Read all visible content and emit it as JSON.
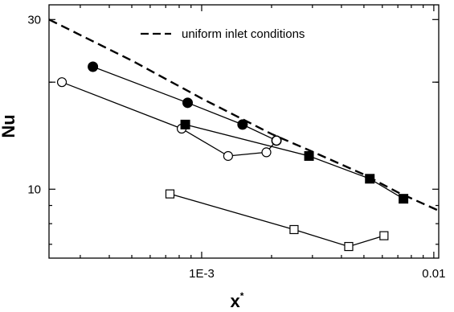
{
  "chart_data": {
    "type": "line",
    "xlabel": "x",
    "xlabel_superscript": "*",
    "ylabel": "Nu",
    "x_scale": "log",
    "y_scale": "log",
    "xlim": [
      0.00022,
      0.0105
    ],
    "ylim": [
      6.4,
      33
    ],
    "x_tick_labels": [
      {
        "value": 0.001,
        "label": "1E-3"
      },
      {
        "value": 0.01,
        "label": "0.01"
      }
    ],
    "y_tick_labels": [
      {
        "value": 10,
        "label": "10"
      },
      {
        "value": 30,
        "label": "30"
      }
    ],
    "grid": false,
    "legend_position": "top-center",
    "series": [
      {
        "name": "uniform inlet conditions",
        "style": "dashed",
        "marker": "none",
        "x": [
          0.00022,
          0.0005,
          0.001,
          0.002,
          0.003,
          0.005,
          0.007,
          0.0105
        ],
        "y": [
          30.0,
          23.0,
          18.0,
          14.3,
          12.75,
          11.0,
          9.8,
          8.7
        ]
      },
      {
        "name": "",
        "style": "solid",
        "marker": "filled-circle",
        "x": [
          0.00034,
          0.00087,
          0.0015,
          0.0021
        ],
        "y": [
          22.1,
          17.5,
          15.2,
          13.7
        ]
      },
      {
        "name": "",
        "style": "solid",
        "marker": "open-circle",
        "x": [
          0.00025,
          0.00082,
          0.0013,
          0.0019,
          0.0021
        ],
        "y": [
          20.0,
          14.8,
          12.4,
          12.7,
          13.7
        ]
      },
      {
        "name": "",
        "style": "solid",
        "marker": "filled-square",
        "x": [
          0.00085,
          0.0029,
          0.0053,
          0.0074
        ],
        "y": [
          15.2,
          12.4,
          10.7,
          9.4
        ]
      },
      {
        "name": "",
        "style": "solid",
        "marker": "open-square",
        "x": [
          0.00073,
          0.0025,
          0.0043,
          0.0061
        ],
        "y": [
          9.7,
          7.7,
          6.9,
          7.4
        ]
      }
    ]
  }
}
